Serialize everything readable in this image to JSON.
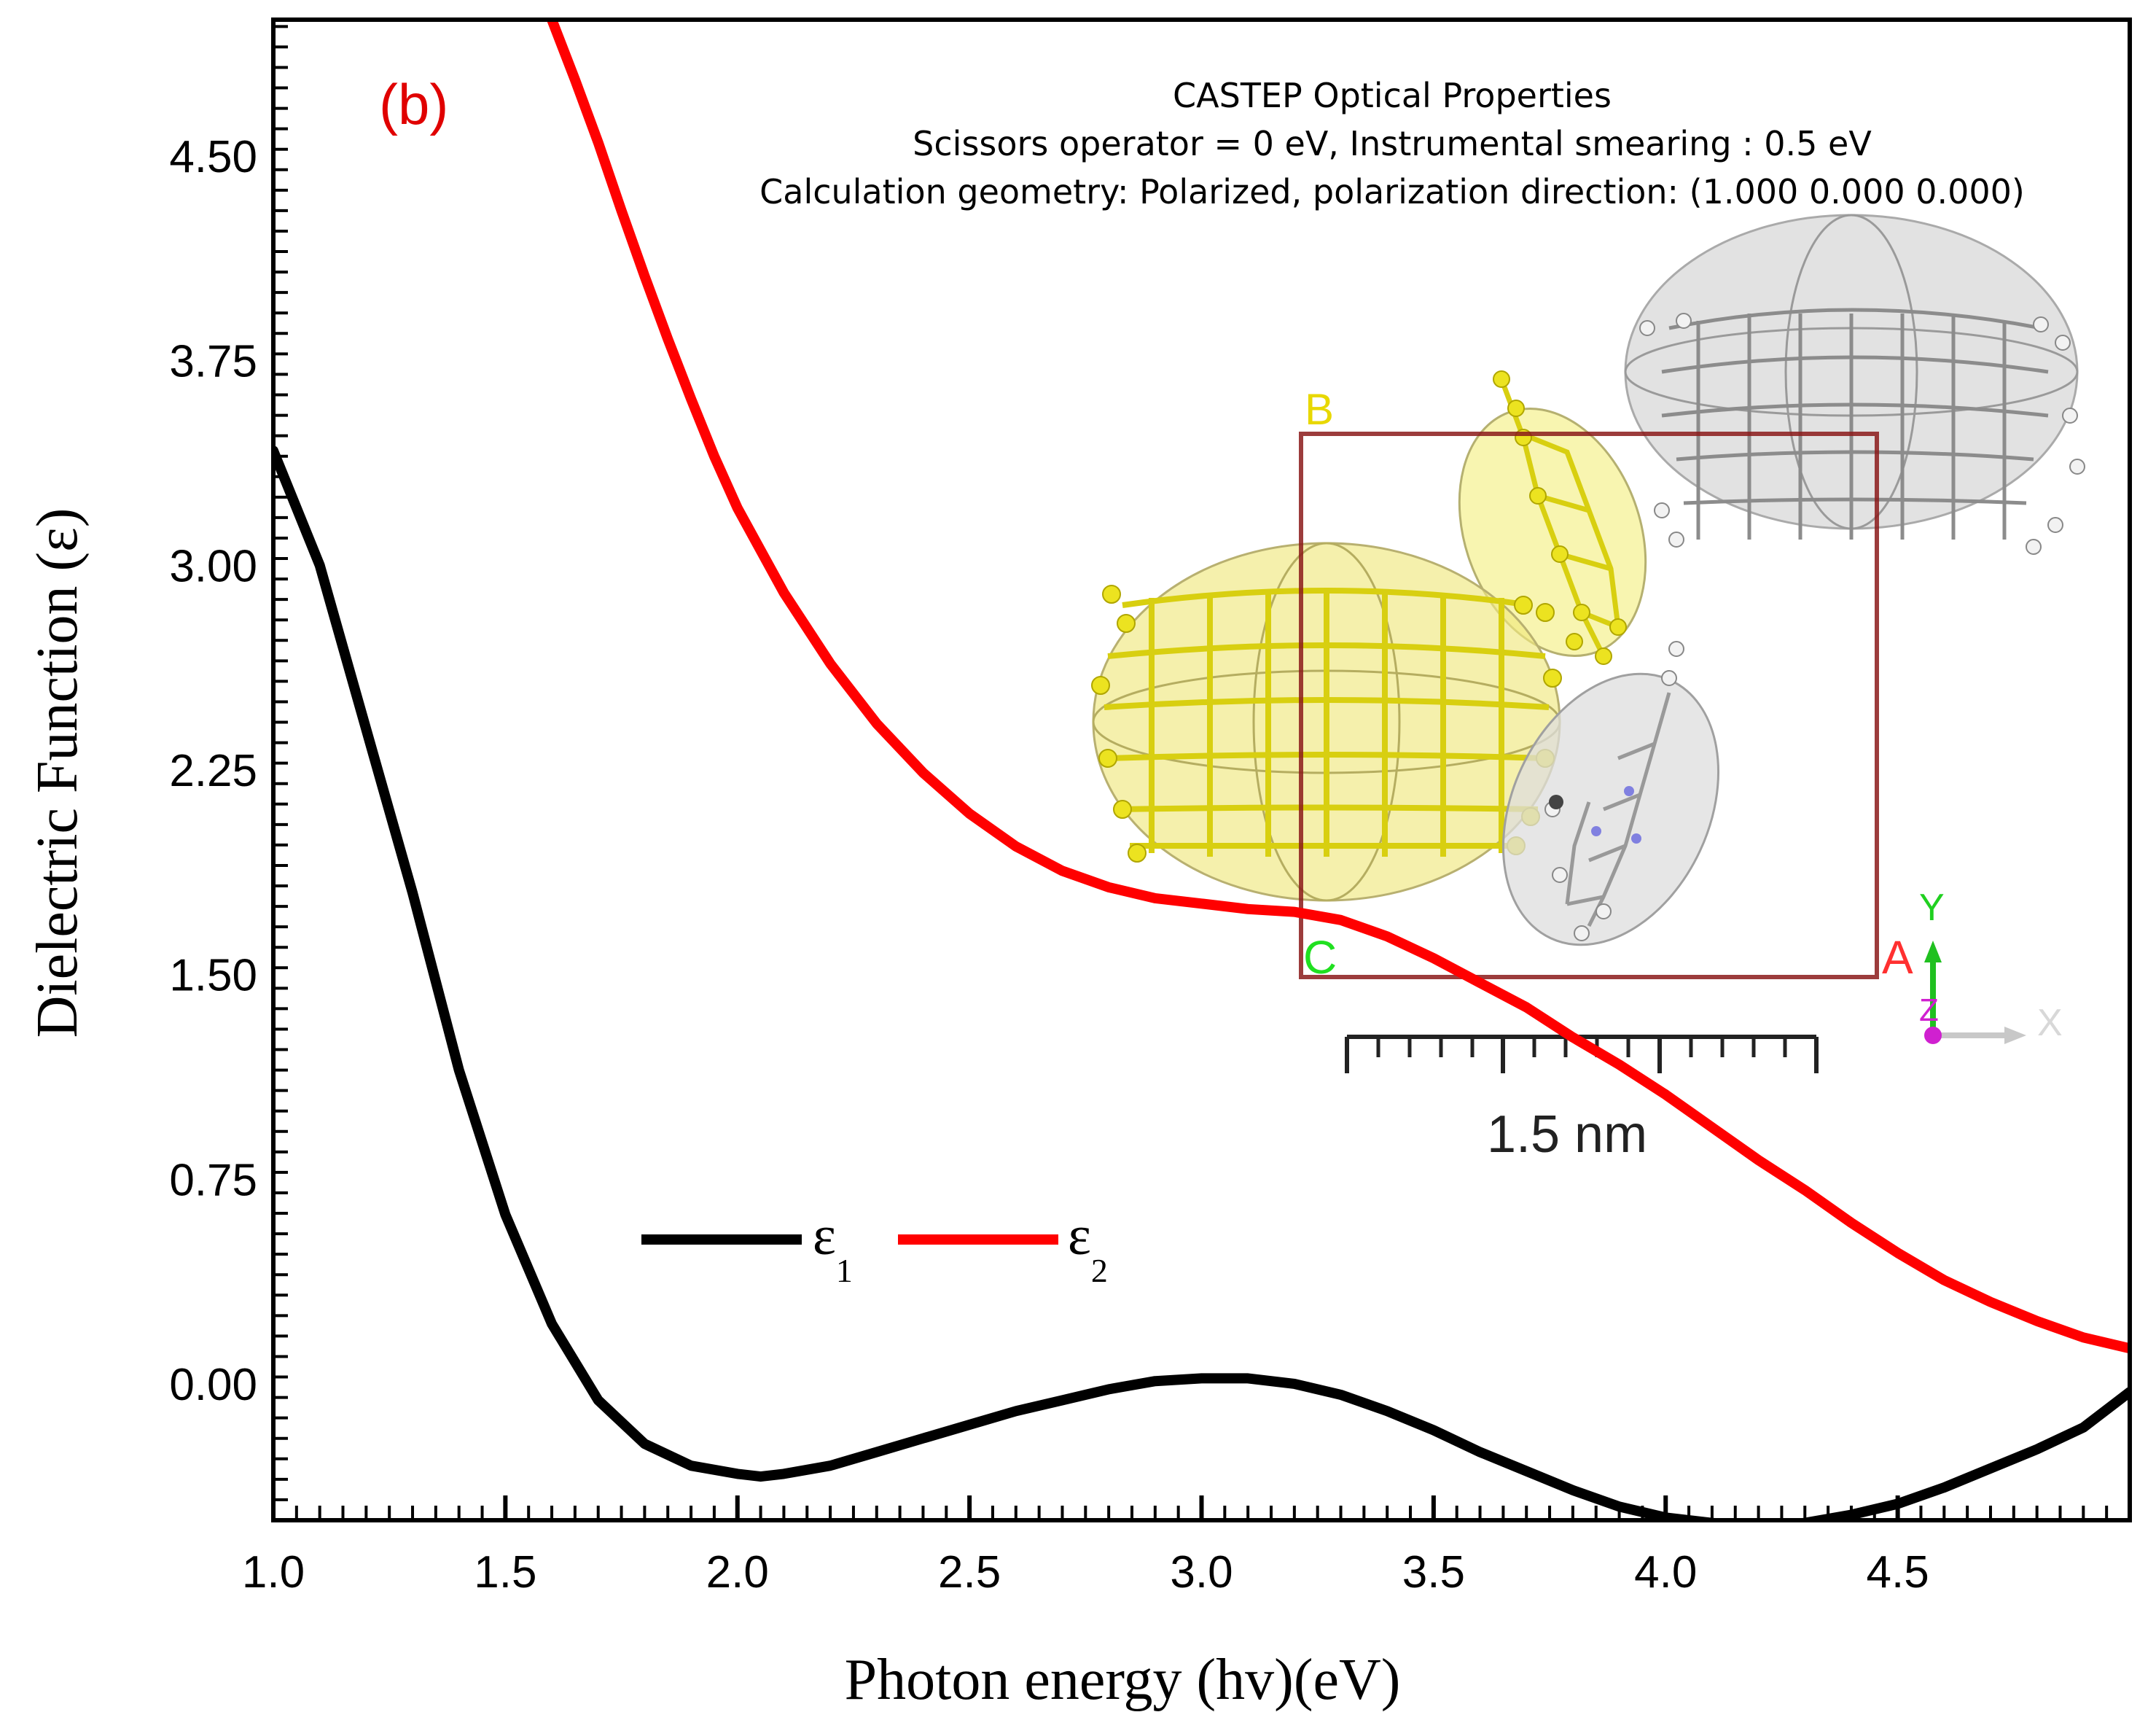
{
  "chart_data": {
    "type": "line",
    "panel_label": "(b)",
    "xlabel": "Photon energy (hv)(eV)",
    "ylabel": "Dielectric Function (ε)",
    "xlim": [
      1.0,
      5.0
    ],
    "ylim": [
      -0.5,
      5.0
    ],
    "x_ticks": [
      "1.0",
      "1.5",
      "2.0",
      "2.5",
      "3.0",
      "3.5",
      "4.0",
      "4.5"
    ],
    "y_ticks": [
      "0.00",
      "0.75",
      "1.50",
      "2.25",
      "3.00",
      "3.75",
      "4.50"
    ],
    "series": [
      {
        "name": "ε",
        "subscript": "1",
        "color": "#000000",
        "x": [
          1.0,
          1.1,
          1.2,
          1.3,
          1.4,
          1.5,
          1.6,
          1.7,
          1.8,
          1.9,
          2.0,
          2.05,
          2.1,
          2.2,
          2.3,
          2.4,
          2.5,
          2.6,
          2.7,
          2.8,
          2.9,
          3.0,
          3.1,
          3.2,
          3.3,
          3.4,
          3.5,
          3.6,
          3.7,
          3.8,
          3.9,
          4.0,
          4.1,
          4.2,
          4.3,
          4.4,
          4.5,
          4.6,
          4.7,
          4.8,
          4.9,
          5.0
        ],
        "y": [
          3.42,
          3.0,
          2.4,
          1.8,
          1.15,
          0.62,
          0.22,
          -0.06,
          -0.22,
          -0.3,
          -0.33,
          -0.34,
          -0.33,
          -0.3,
          -0.25,
          -0.2,
          -0.15,
          -0.1,
          -0.06,
          -0.02,
          0.01,
          0.02,
          0.02,
          0.0,
          -0.04,
          -0.1,
          -0.17,
          -0.25,
          -0.32,
          -0.39,
          -0.45,
          -0.49,
          -0.51,
          -0.52,
          -0.51,
          -0.48,
          -0.44,
          -0.38,
          -0.31,
          -0.24,
          -0.16,
          -0.03
        ]
      },
      {
        "name": "ε",
        "subscript": "2",
        "color": "#ff0000",
        "x": [
          1.6,
          1.65,
          1.7,
          1.75,
          1.8,
          1.85,
          1.9,
          1.95,
          2.0,
          2.1,
          2.2,
          2.3,
          2.4,
          2.5,
          2.6,
          2.7,
          2.8,
          2.9,
          3.0,
          3.1,
          3.2,
          3.3,
          3.4,
          3.5,
          3.6,
          3.7,
          3.8,
          3.9,
          4.0,
          4.1,
          4.2,
          4.3,
          4.4,
          4.5,
          4.6,
          4.7,
          4.8,
          4.9,
          5.0
        ],
        "y": [
          5.0,
          4.78,
          4.55,
          4.3,
          4.06,
          3.83,
          3.61,
          3.4,
          3.21,
          2.9,
          2.64,
          2.42,
          2.24,
          2.09,
          1.97,
          1.88,
          1.82,
          1.78,
          1.76,
          1.74,
          1.73,
          1.7,
          1.64,
          1.56,
          1.47,
          1.38,
          1.27,
          1.17,
          1.06,
          0.94,
          0.82,
          0.71,
          0.59,
          0.48,
          0.38,
          0.3,
          0.23,
          0.17,
          0.13
        ]
      }
    ],
    "legend": {
      "placement": "center-left"
    }
  },
  "inset": {
    "title": "CASTEP Optical Properties",
    "line2": "Scissors operator = 0 eV, Instrumental smearing : 0.5 eV",
    "line3": "Calculation geometry: Polarized, polarization direction: (1.000 0.000 0.000)",
    "cell_labels": {
      "b": "B",
      "c": "C",
      "a": "A"
    },
    "scale_bar_label": "1.5 nm",
    "axes_labels": {
      "y": "Y",
      "z": "Z",
      "x": "X"
    },
    "colors": {
      "yellow_molecule": "#e8e040",
      "grey_molecule": "#b8b8b8",
      "cell": "#8b1a1a"
    }
  }
}
